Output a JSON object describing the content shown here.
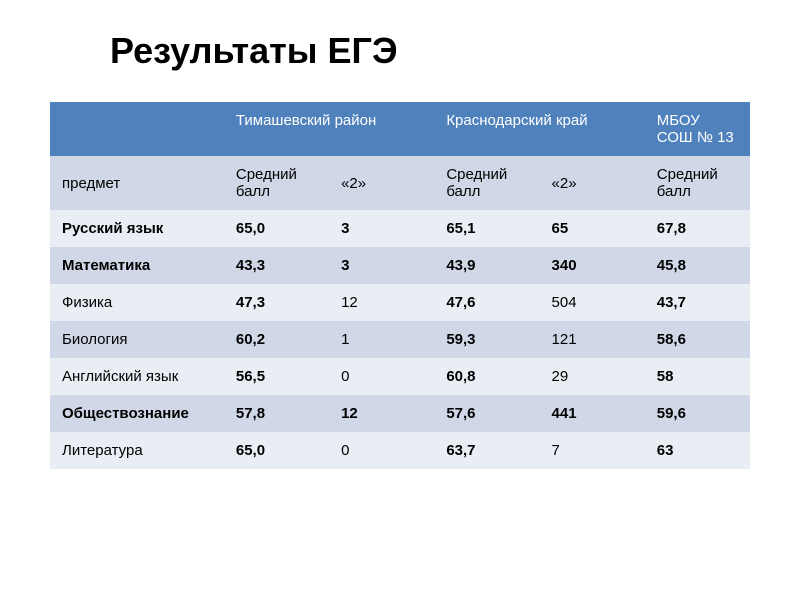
{
  "title": "Результаты ЕГЭ",
  "header_groups": [
    "",
    "Тимашевский район",
    "Краснодарский край",
    "МБОУ СОШ № 13"
  ],
  "subheaders": [
    "предмет",
    "Средний балл",
    "«2»",
    "Средний балл",
    "«2»",
    "Средний балл"
  ],
  "rows": [
    {
      "subject": "Русский язык",
      "subject_style": "subject-red",
      "cells": [
        {
          "v": "65,0",
          "s": "val-bold"
        },
        {
          "v": "3",
          "s": "val-red"
        },
        {
          "v": "65,1",
          "s": "val-bold"
        },
        {
          "v": "65",
          "s": "val-red"
        },
        {
          "v": "67,8",
          "s": "val-bold"
        }
      ],
      "bg": "light"
    },
    {
      "subject": "Математика",
      "subject_style": "subject-red",
      "cells": [
        {
          "v": "43,3",
          "s": "val-bold"
        },
        {
          "v": "3",
          "s": "val-red"
        },
        {
          "v": "43,9",
          "s": "val-bold"
        },
        {
          "v": "340",
          "s": "val-red"
        },
        {
          "v": "45,8",
          "s": "val-bold"
        }
      ],
      "bg": "lighter"
    },
    {
      "subject": "Физика",
      "subject_style": "subject-normal",
      "cells": [
        {
          "v": "47,3",
          "s": "val-bold"
        },
        {
          "v": "12",
          "s": "val-normal"
        },
        {
          "v": "47,6",
          "s": "val-bold"
        },
        {
          "v": "504",
          "s": "val-normal"
        },
        {
          "v": "43,7",
          "s": "val-bold"
        }
      ],
      "bg": "light"
    },
    {
      "subject": "Биология",
      "subject_style": "subject-normal",
      "cells": [
        {
          "v": "60,2",
          "s": "val-bold"
        },
        {
          "v": "1",
          "s": "val-normal"
        },
        {
          "v": "59,3",
          "s": "val-bold"
        },
        {
          "v": "121",
          "s": "val-normal"
        },
        {
          "v": "58,6",
          "s": "val-bold"
        }
      ],
      "bg": "lighter"
    },
    {
      "subject": "Английский язык",
      "subject_style": "subject-normal",
      "cells": [
        {
          "v": "56,5",
          "s": "val-bold"
        },
        {
          "v": "0",
          "s": "val-normal"
        },
        {
          "v": "60,8",
          "s": "val-bold"
        },
        {
          "v": "29",
          "s": "val-normal"
        },
        {
          "v": "58",
          "s": "val-bold"
        }
      ],
      "bg": "light"
    },
    {
      "subject": "Обществознание",
      "subject_style": "subject-red",
      "cells": [
        {
          "v": "57,8",
          "s": "val-bold"
        },
        {
          "v": "12",
          "s": "val-red"
        },
        {
          "v": "57,6",
          "s": "val-bold"
        },
        {
          "v": "441",
          "s": "val-red"
        },
        {
          "v": "59,6",
          "s": "val-bold"
        }
      ],
      "bg": "lighter"
    },
    {
      "subject": "Литература",
      "subject_style": "subject-normal",
      "cells": [
        {
          "v": "65,0",
          "s": "val-bold"
        },
        {
          "v": "0",
          "s": "val-normal"
        },
        {
          "v": "63,7",
          "s": "val-bold"
        },
        {
          "v": "7",
          "s": "val-normal"
        },
        {
          "v": "63",
          "s": "val-bold"
        }
      ],
      "bg": "light"
    }
  ],
  "colors": {
    "header_bg": "#4f81bd",
    "header_text": "#ffffff",
    "band_light": "#e9edf4",
    "band_lighter": "#d0d8e8",
    "red_text": "#c00000",
    "title_color": "#000000"
  }
}
